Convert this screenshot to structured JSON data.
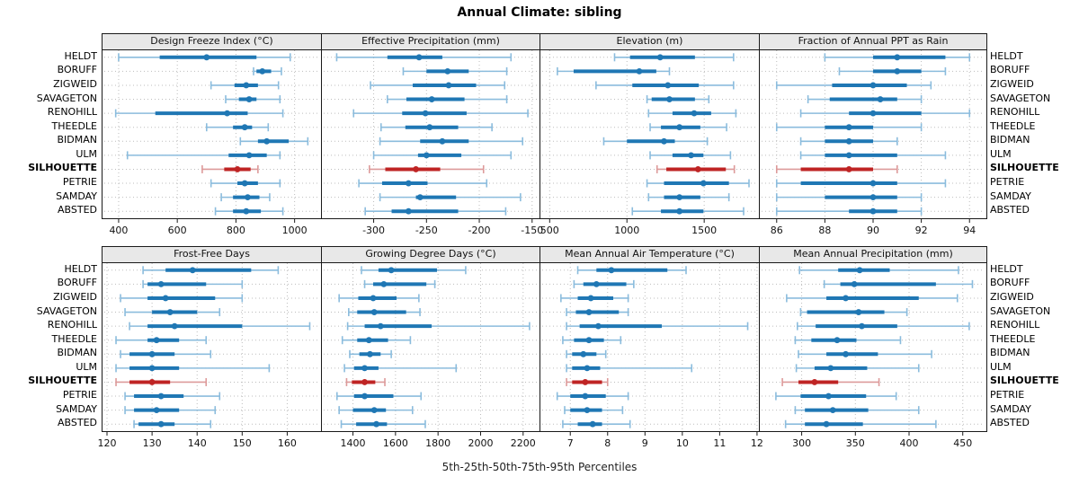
{
  "title": "Annual Climate: sibling",
  "caption": "5th-25th-50th-75th-95th Percentiles",
  "percentile_labels": [
    "5th",
    "25th",
    "50th",
    "75th",
    "95th"
  ],
  "stations": [
    "HELDT",
    "BORUFF",
    "ZIGWEID",
    "SAVAGETON",
    "RENOHILL",
    "THEEDLE",
    "BIDMAN",
    "ULM",
    "SILHOUETTE",
    "PETRIE",
    "SAMDAY",
    "ABSTED"
  ],
  "highlight_station": "SILHOUETTE",
  "colors": {
    "blue": "#1f77b4",
    "blue_light": "#8bbcdd",
    "red": "#bf2424",
    "red_light": "#dd9a9a",
    "header_bg": "#e8e8e8",
    "panel_border": "#1a1a1a",
    "grid": "#bdbdbd"
  },
  "chart_data": {
    "type": "percentile-dot-plot",
    "rows": [
      "HELDT",
      "BORUFF",
      "ZIGWEID",
      "SAVAGETON",
      "RENOHILL",
      "THEEDLE",
      "BIDMAN",
      "ULM",
      "SILHOUETTE",
      "PETRIE",
      "SAMDAY",
      "ABSTED"
    ],
    "highlight_row": "SILHOUETTE",
    "percentiles": [
      5,
      25,
      50,
      75,
      95
    ],
    "panels": [
      {
        "title": "Design Freeze Index (°C)",
        "ticks": [
          400,
          600,
          800,
          1000
        ],
        "xlim": [
          345,
          1090
        ],
        "values": [
          [
            400,
            540,
            700,
            870,
            985
          ],
          [
            860,
            870,
            890,
            920,
            955
          ],
          [
            715,
            795,
            835,
            875,
            945
          ],
          [
            765,
            810,
            845,
            870,
            950
          ],
          [
            390,
            525,
            770,
            840,
            960
          ],
          [
            700,
            790,
            830,
            855,
            910
          ],
          [
            815,
            875,
            905,
            980,
            1045
          ],
          [
            430,
            775,
            845,
            905,
            950
          ],
          [
            685,
            760,
            805,
            850,
            875
          ],
          [
            715,
            805,
            830,
            875,
            950
          ],
          [
            750,
            790,
            840,
            880,
            915
          ],
          [
            730,
            790,
            835,
            885,
            960
          ]
        ]
      },
      {
        "title": "Effective Precipitation (mm)",
        "ticks": [
          -300,
          -250,
          -200,
          -150
        ],
        "xlim": [
          -349,
          -143
        ],
        "values": [
          [
            -335,
            -287,
            -257,
            -235,
            -170
          ],
          [
            -272,
            -250,
            -230,
            -210,
            -174
          ],
          [
            -303,
            -263,
            -229,
            -203,
            -176
          ],
          [
            -287,
            -269,
            -245,
            -214,
            -174
          ],
          [
            -319,
            -273,
            -251,
            -212,
            -154
          ],
          [
            -293,
            -270,
            -247,
            -220,
            -188
          ],
          [
            -294,
            -256,
            -235,
            -210,
            -159
          ],
          [
            -300,
            -258,
            -250,
            -217,
            -170
          ],
          [
            -304,
            -289,
            -260,
            -237,
            -196
          ],
          [
            -314,
            -292,
            -267,
            -249,
            -193
          ],
          [
            -294,
            -260,
            -256,
            -222,
            -161
          ],
          [
            -308,
            -283,
            -267,
            -220,
            -175
          ]
        ]
      },
      {
        "title": "Elevation (m)",
        "ticks": [
          500,
          1000,
          1500
        ],
        "xlim": [
          440,
          1854
        ],
        "values": [
          [
            920,
            1020,
            1215,
            1440,
            1690
          ],
          [
            550,
            655,
            1080,
            1190,
            1275
          ],
          [
            800,
            1035,
            1265,
            1465,
            1690
          ],
          [
            1130,
            1160,
            1275,
            1440,
            1530
          ],
          [
            1140,
            1295,
            1435,
            1545,
            1705
          ],
          [
            1150,
            1220,
            1340,
            1475,
            1645
          ],
          [
            850,
            1000,
            1240,
            1310,
            1520
          ],
          [
            1150,
            1295,
            1415,
            1495,
            1670
          ],
          [
            1195,
            1255,
            1460,
            1640,
            1695
          ],
          [
            1130,
            1240,
            1495,
            1660,
            1790
          ],
          [
            1140,
            1240,
            1340,
            1475,
            1660
          ],
          [
            1035,
            1220,
            1340,
            1495,
            1755
          ]
        ]
      },
      {
        "title": "Fraction of Annual PPT as Rain",
        "ticks": [
          86,
          88,
          90,
          92,
          94
        ],
        "xlim": [
          85.3,
          94.7
        ],
        "values": [
          [
            88,
            90,
            91,
            93,
            94
          ],
          [
            88.6,
            90,
            91,
            92,
            93
          ],
          [
            86,
            88.3,
            90,
            91.4,
            92.4
          ],
          [
            87.3,
            88.2,
            90.3,
            91,
            92
          ],
          [
            87,
            89,
            90,
            92,
            94
          ],
          [
            86,
            88,
            89,
            90,
            92
          ],
          [
            87,
            88,
            89,
            90,
            91
          ],
          [
            87,
            88,
            89,
            91,
            93
          ],
          [
            86,
            87,
            89,
            90,
            91
          ],
          [
            86,
            87,
            90,
            91,
            93
          ],
          [
            86,
            88,
            90,
            91,
            92
          ],
          [
            86,
            89,
            90,
            91,
            92
          ]
        ]
      },
      {
        "title": "Frost-Free Days",
        "ticks": [
          120,
          130,
          140,
          150,
          160
        ],
        "xlim": [
          119,
          167.5
        ],
        "values": [
          [
            128,
            133,
            139,
            152,
            158
          ],
          [
            128,
            129,
            132,
            142,
            150
          ],
          [
            123,
            129,
            133,
            144,
            150
          ],
          [
            124,
            130,
            134,
            140,
            145
          ],
          [
            125,
            129,
            135,
            150,
            165
          ],
          [
            122,
            129,
            131,
            136,
            142
          ],
          [
            123,
            125,
            130,
            135,
            143
          ],
          [
            122,
            125,
            130,
            136,
            156
          ],
          [
            122,
            125,
            130,
            134,
            142
          ],
          [
            124,
            126,
            132,
            137,
            145
          ],
          [
            124,
            126,
            131,
            136,
            144
          ],
          [
            126,
            127,
            132,
            135,
            143
          ]
        ]
      },
      {
        "title": "Growing Degree Days (°C)",
        "ticks": [
          1400,
          1600,
          1800,
          2000,
          2200
        ],
        "xlim": [
          1254,
          2277
        ],
        "values": [
          [
            1440,
            1520,
            1580,
            1795,
            1930
          ],
          [
            1455,
            1495,
            1545,
            1745,
            1785
          ],
          [
            1335,
            1425,
            1495,
            1605,
            1710
          ],
          [
            1380,
            1420,
            1500,
            1650,
            1715
          ],
          [
            1375,
            1455,
            1530,
            1770,
            2230
          ],
          [
            1350,
            1420,
            1475,
            1565,
            1670
          ],
          [
            1385,
            1430,
            1480,
            1530,
            1580
          ],
          [
            1360,
            1405,
            1455,
            1520,
            1885
          ],
          [
            1370,
            1395,
            1455,
            1505,
            1550
          ],
          [
            1325,
            1405,
            1455,
            1590,
            1720
          ],
          [
            1335,
            1400,
            1500,
            1555,
            1680
          ],
          [
            1345,
            1415,
            1510,
            1560,
            1740
          ]
        ]
      },
      {
        "title": "Mean Annual Air Temperature (°C)",
        "ticks": [
          7,
          8,
          9,
          10,
          11,
          12
        ],
        "xlim": [
          6.2,
          12.05
        ],
        "values": [
          [
            7.2,
            7.7,
            8.1,
            9.6,
            10.1
          ],
          [
            7.1,
            7.35,
            7.7,
            8.5,
            8.7
          ],
          [
            6.75,
            7.2,
            7.55,
            8.15,
            8.55
          ],
          [
            6.9,
            7.15,
            7.5,
            8.3,
            8.55
          ],
          [
            6.9,
            7.25,
            7.75,
            9.45,
            11.75
          ],
          [
            6.8,
            7.1,
            7.5,
            7.9,
            8.35
          ],
          [
            6.9,
            7.05,
            7.35,
            7.7,
            7.95
          ],
          [
            6.9,
            7.05,
            7.45,
            7.8,
            10.25
          ],
          [
            6.9,
            7.05,
            7.4,
            7.85,
            8.0
          ],
          [
            6.65,
            7.0,
            7.4,
            7.95,
            8.55
          ],
          [
            6.85,
            7.0,
            7.45,
            7.85,
            8.4
          ],
          [
            6.8,
            7.2,
            7.6,
            7.85,
            8.6
          ]
        ]
      },
      {
        "title": "Mean Annual Precipitation (mm)",
        "ticks": [
          300,
          350,
          400,
          450
        ],
        "xlim": [
          261,
          472
        ],
        "values": [
          [
            298,
            334,
            354,
            382,
            446
          ],
          [
            321,
            336,
            349,
            425,
            459
          ],
          [
            286,
            323,
            341,
            409,
            445
          ],
          [
            299,
            305,
            353,
            377,
            398
          ],
          [
            296,
            313,
            356,
            389,
            456
          ],
          [
            294,
            309,
            333,
            351,
            392
          ],
          [
            297,
            323,
            341,
            371,
            421
          ],
          [
            295,
            312,
            327,
            361,
            409
          ],
          [
            282,
            297,
            312,
            334,
            372
          ],
          [
            276,
            299,
            325,
            360,
            388
          ],
          [
            294,
            303,
            329,
            362,
            409
          ],
          [
            285,
            303,
            323,
            357,
            425
          ]
        ]
      }
    ]
  }
}
